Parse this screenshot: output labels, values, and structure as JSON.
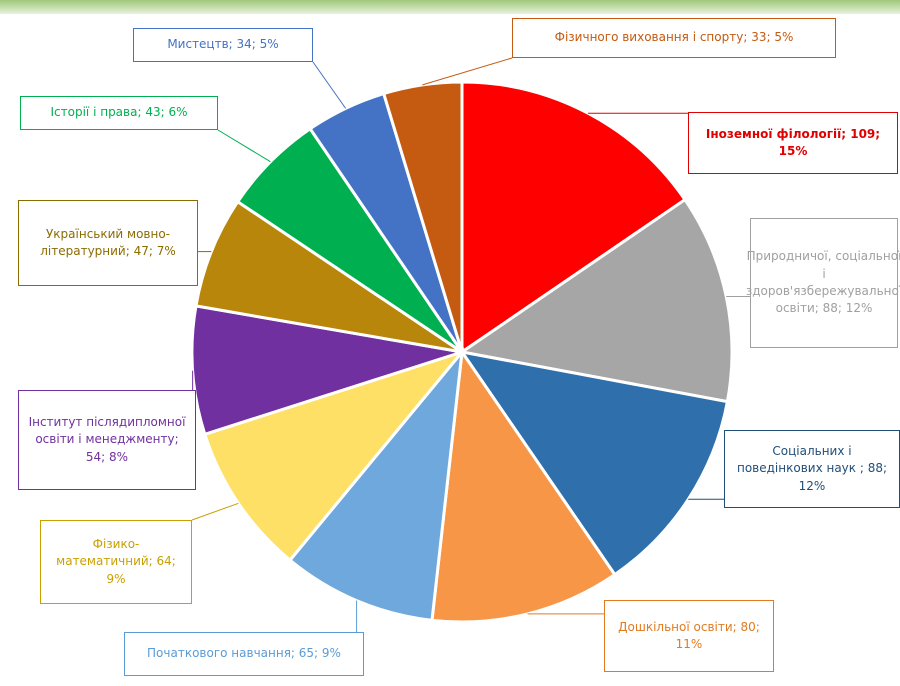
{
  "chart_data": {
    "type": "pie",
    "categories": [
      "Іноземної філології",
      "Природничої, соціальної і здоров'язбережувальної освіти",
      "Соціальних і поведінкових наук",
      "Дошкільної освіти",
      "Початкового навчання",
      "Фізико-математичний",
      "Інститут післядипломної освіти і менеджменту",
      "Український мовно-літературний",
      "Історії і права",
      "Мистецтв",
      "Фізичного виховання і спорту"
    ],
    "labels": [
      "Іноземної філології; 109; 15%",
      "Природничої, соціальної і здоров'язбережувальної освіти; 88; 12%",
      "Соціальних і поведінкових наук ; 88; 12%",
      "Дошкільної освіти; 80; 11%",
      "Початкового навчання; 65; 9%",
      "Фізико-математичний; 64; 9%",
      "Інститут післядипломної освіти і менеджменту; 54; 8%",
      "Український мовно-літературний; 47; 7%",
      "Історії і права; 43; 6%",
      "Мистецтв; 34; 5%",
      "Фізичного виховання і спорту; 33; 5%"
    ],
    "values": [
      109,
      88,
      88,
      80,
      65,
      64,
      54,
      47,
      43,
      34,
      33
    ],
    "colors": [
      "#ff0000",
      "#a6a6a6",
      "#2e6fac",
      "#f79646",
      "#6fa8dc",
      "#ffe066",
      "#7030a0",
      "#b8860b",
      "#00b050",
      "#4472c4",
      "#c55a11"
    ]
  }
}
